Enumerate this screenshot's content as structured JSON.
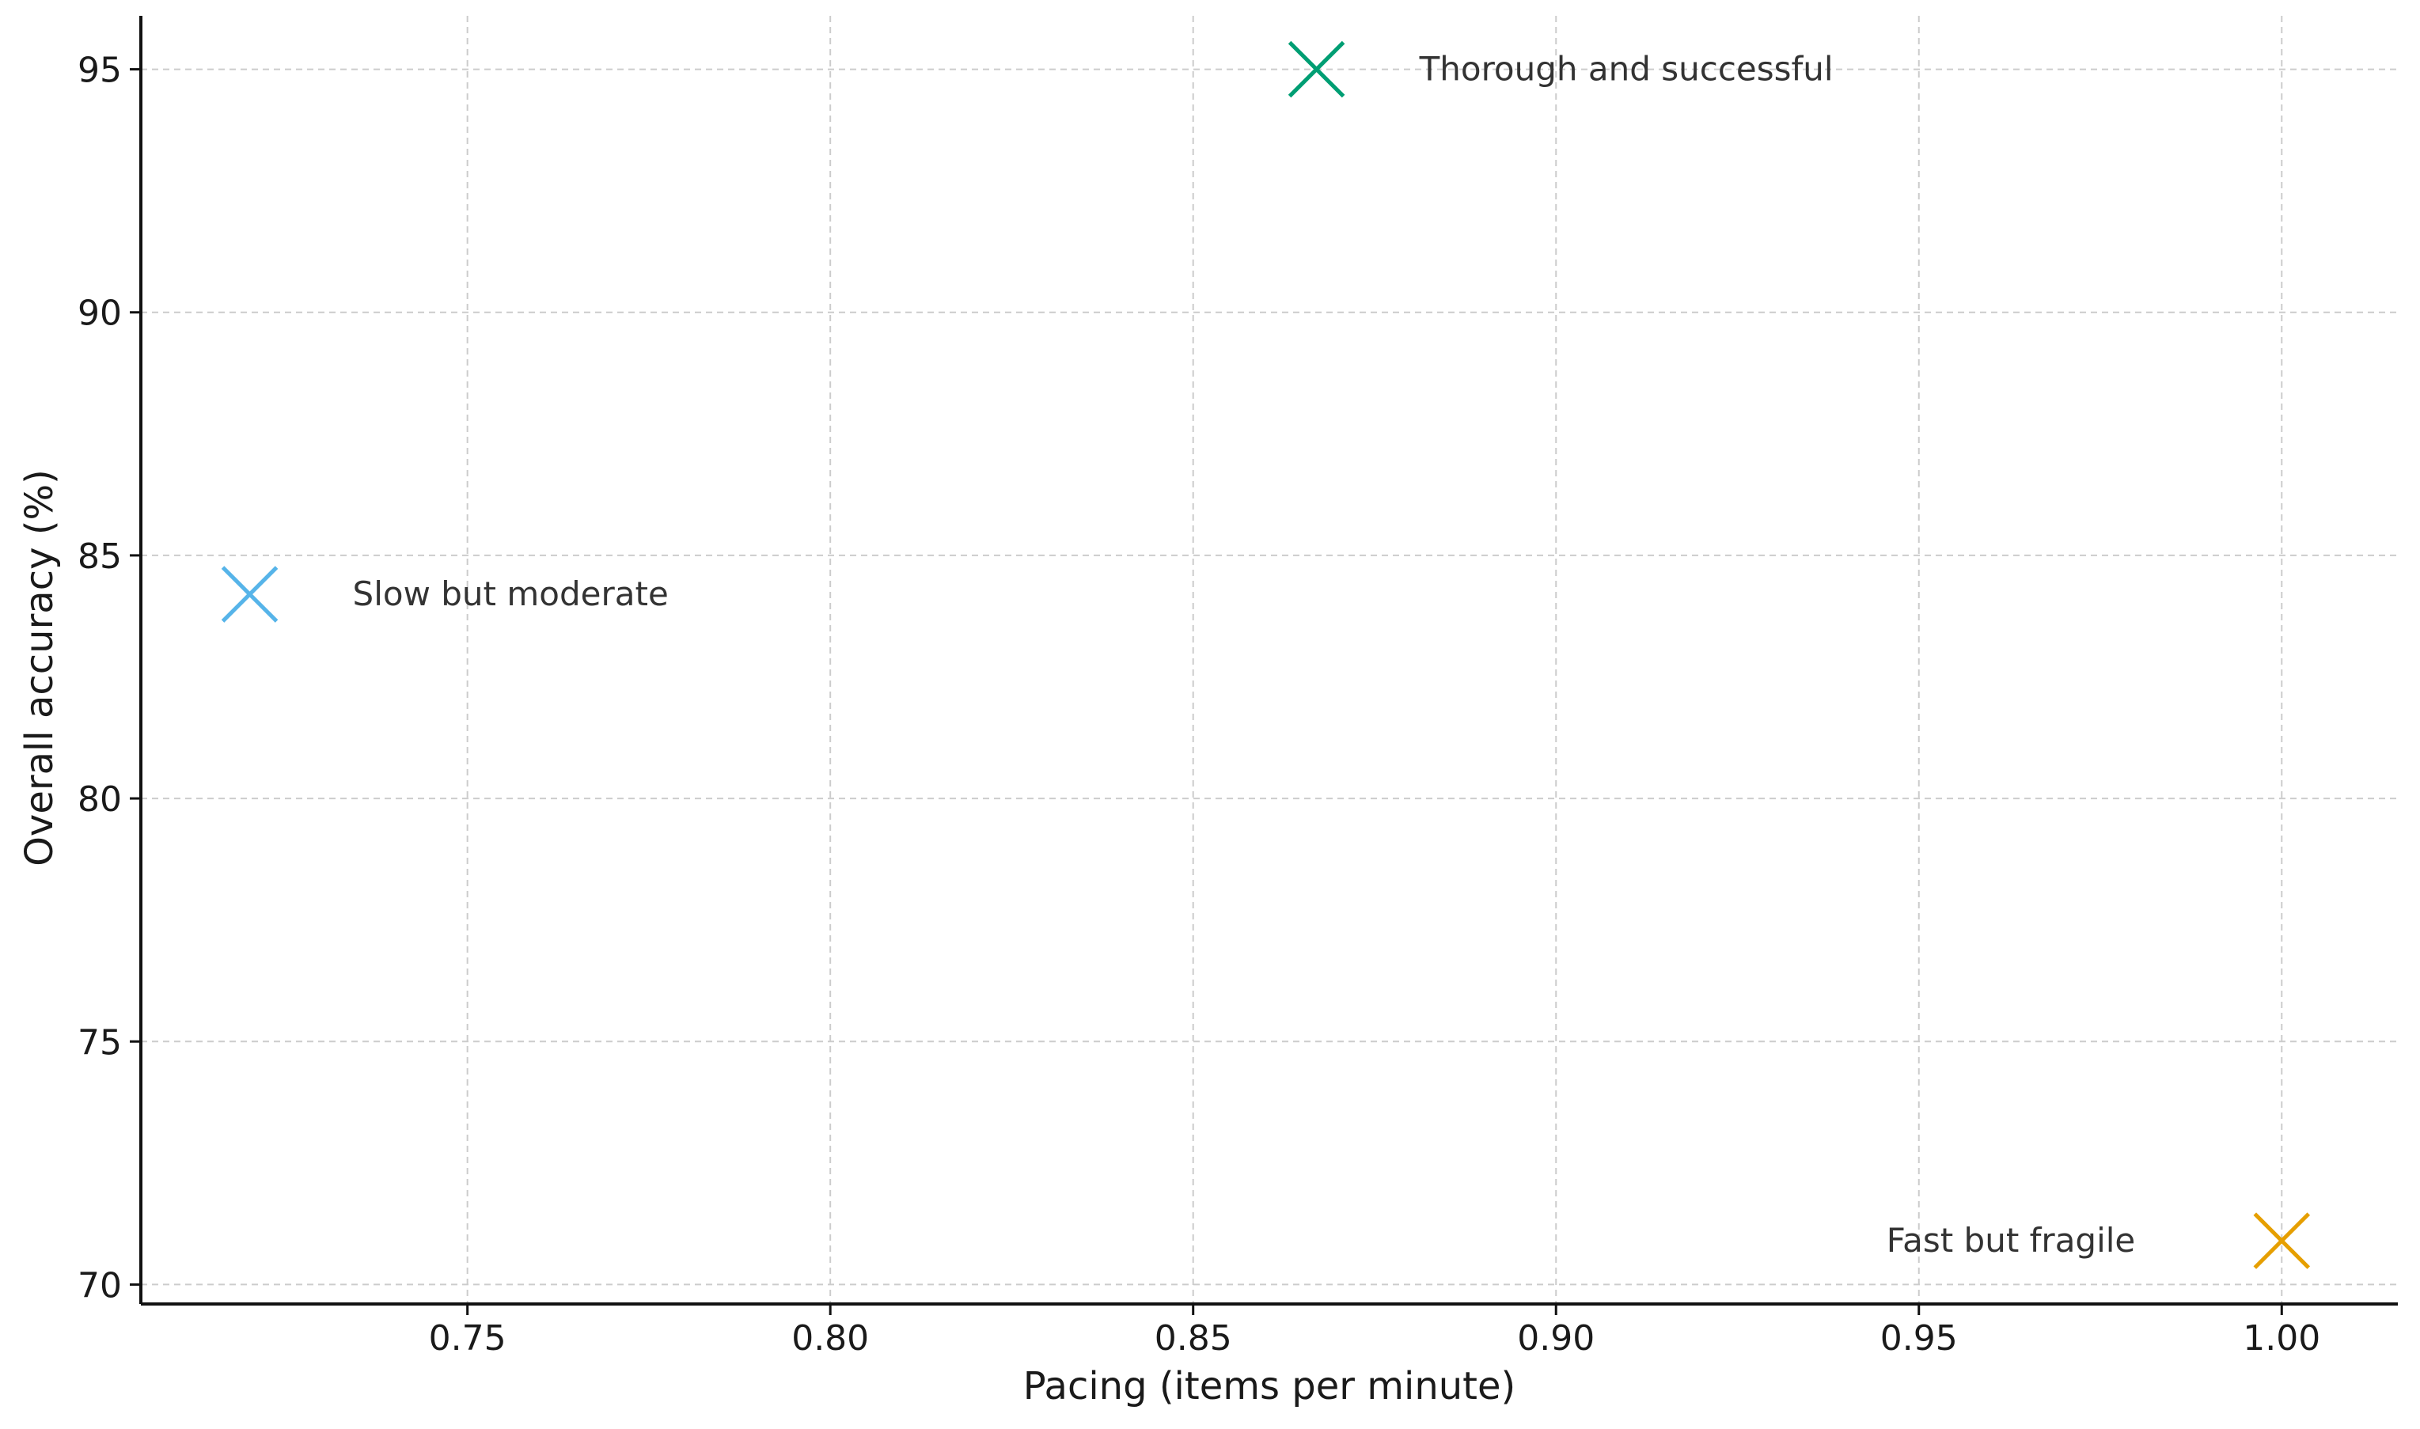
{
  "chart_data": {
    "type": "scatter",
    "title": "",
    "xlabel": "Pacing (items per minute)",
    "ylabel": "Overall accuracy (%)",
    "xlim": [
      0.705,
      1.016
    ],
    "ylim": [
      69.6,
      96.1
    ],
    "xticks": [
      0.75,
      0.8,
      0.85,
      0.9,
      0.95,
      1.0
    ],
    "xtick_labels": [
      "0.75",
      "0.80",
      "0.85",
      "0.90",
      "0.95",
      "1.00"
    ],
    "yticks": [
      70,
      75,
      80,
      85,
      90,
      95
    ],
    "ytick_labels": [
      "70",
      "75",
      "80",
      "85",
      "90",
      "95"
    ],
    "grid": true,
    "marker": "x",
    "points": [
      {
        "x": 0.72,
        "y": 84.2,
        "label": "Slow but moderate",
        "label_position": "right",
        "color": "#56B4E9"
      },
      {
        "x": 0.867,
        "y": 95.0,
        "label": "Thorough and successful",
        "label_position": "right",
        "color": "#009E73"
      },
      {
        "x": 1.0,
        "y": 70.9,
        "label": "Fast but fragile",
        "label_position": "left",
        "color": "#E69F00"
      }
    ]
  }
}
